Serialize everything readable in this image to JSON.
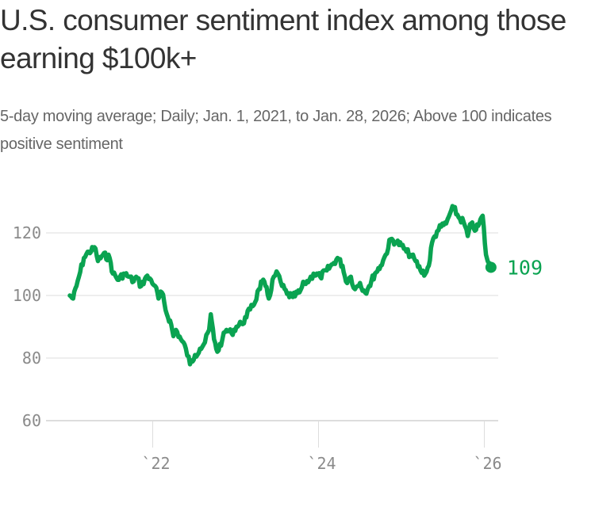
{
  "header": {
    "title": "U.S. consumer sentiment index among those earning $100k+",
    "subtitle": "5-day moving average; Daily; Jan. 1, 2021, to Jan. 28, 2026; Above 100 indicates positive sentiment"
  },
  "colors": {
    "line": "#0aa351",
    "grid": "#dddddd",
    "tick_text": "#8a8a8a"
  },
  "chart_data": {
    "type": "line",
    "title": "U.S. consumer sentiment index among those earning $100k+",
    "subtitle": "5-day moving average; Daily; Jan. 1, 2021, to Jan. 28, 2026; Above 100 indicates positive sentiment",
    "xlabel": "",
    "ylabel": "",
    "x_unit": "years since Jan. 1, 2021",
    "xlim": [
      2021.0,
      2026.08
    ],
    "ylim": [
      60,
      130
    ],
    "grid": true,
    "legend": "none",
    "y_ticks": [
      60,
      80,
      100,
      120
    ],
    "y_tick_labels": [
      "60",
      "80",
      "100",
      "120"
    ],
    "x_ticks": [
      2022,
      2024,
      2026
    ],
    "x_tick_labels": [
      "`22",
      "`24",
      "`26"
    ],
    "series": [
      {
        "name": "Consumer sentiment ($100k+)",
        "x": [
          2021.0,
          2021.04,
          2021.08,
          2021.11,
          2021.17,
          2021.23,
          2021.31,
          2021.34,
          2021.4,
          2021.48,
          2021.52,
          2021.59,
          2021.65,
          2021.71,
          2021.77,
          2021.8,
          2021.86,
          2021.92,
          2021.98,
          2022.03,
          2022.07,
          2022.11,
          2022.17,
          2022.21,
          2022.25,
          2022.28,
          2022.34,
          2022.4,
          2022.45,
          2022.51,
          2022.57,
          2022.63,
          2022.68,
          2022.7,
          2022.74,
          2022.78,
          2022.84,
          2022.89,
          2022.95,
          2023.01,
          2023.07,
          2023.13,
          2023.19,
          2023.22,
          2023.28,
          2023.32,
          2023.36,
          2023.4,
          2023.46,
          2023.51,
          2023.56,
          2023.62,
          2023.69,
          2023.77,
          2023.83,
          2023.89,
          2023.94,
          2024.02,
          2024.1,
          2024.17,
          2024.23,
          2024.29,
          2024.33,
          2024.39,
          2024.44,
          2024.5,
          2024.56,
          2024.61,
          2024.68,
          2024.75,
          2024.81,
          2024.87,
          2024.94,
          2025.0,
          2025.06,
          2025.11,
          2025.17,
          2025.23,
          2025.29,
          2025.33,
          2025.37,
          2025.43,
          2025.48,
          2025.54,
          2025.59,
          2025.63,
          2025.69,
          2025.75,
          2025.8,
          2025.84,
          2025.9,
          2025.94,
          2025.98,
          2026.02,
          2026.04,
          2026.08
        ],
        "values": [
          100,
          99,
          103,
          106,
          112,
          114,
          115,
          111,
          113,
          112,
          107,
          105,
          107,
          106,
          104.5,
          106,
          103,
          106,
          105,
          103,
          99,
          101,
          94,
          92,
          87,
          89,
          86,
          83,
          78,
          81,
          83,
          85,
          89,
          94,
          86,
          82,
          86,
          89,
          88,
          90,
          91,
          93,
          97,
          97,
          102,
          104.5,
          103,
          99,
          106,
          107,
          103,
          100.5,
          99.5,
          101,
          104,
          105,
          107,
          106,
          108,
          110,
          112,
          109.5,
          104.5,
          106,
          102,
          104,
          101,
          103,
          107,
          109.5,
          113,
          118,
          117,
          116,
          114,
          113,
          111,
          108,
          107,
          109.5,
          117,
          120.5,
          122,
          123,
          126.5,
          128,
          125,
          123.5,
          119,
          123,
          121,
          123,
          125.5,
          113,
          111,
          109
        ]
      }
    ],
    "annotations": [
      {
        "label": "109",
        "x": 2026.08,
        "y": 109,
        "note": "latest value"
      }
    ]
  }
}
